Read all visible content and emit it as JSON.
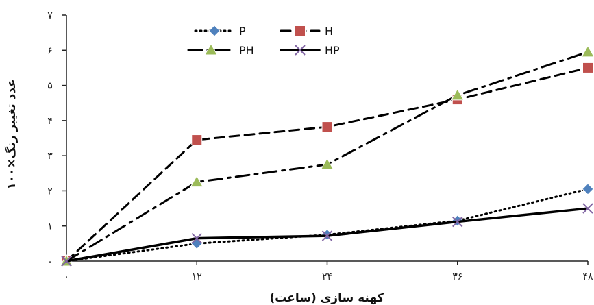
{
  "chart_data": {
    "type": "line",
    "xlabel": "کهنه سازی (ساعت)",
    "ylabel": "عدد تغییر رنگ×۱۰۰",
    "x": [
      0,
      12,
      24,
      36,
      48
    ],
    "x_tick_labels": [
      "۰",
      "۱۲",
      "۲۴",
      "۳۶",
      "۴۸"
    ],
    "y_ticks": [
      0,
      1,
      2,
      3,
      4,
      5,
      6,
      7
    ],
    "y_tick_labels": [
      "۰",
      "۱",
      "۲",
      "۳",
      "۴",
      "۵",
      "۶",
      "۷"
    ],
    "xlim": [
      0,
      48
    ],
    "ylim": [
      0,
      7
    ],
    "grid": false,
    "legend_position": "top-center",
    "series": [
      {
        "name": "P",
        "values": [
          0,
          0.5,
          0.75,
          1.15,
          2.05
        ],
        "color": "#4f81bd",
        "marker": "diamond",
        "dash": "dotted"
      },
      {
        "name": "H",
        "values": [
          0,
          3.45,
          3.82,
          4.6,
          5.5
        ],
        "color": "#c0504d",
        "marker": "square",
        "dash": "dashed"
      },
      {
        "name": "PH",
        "values": [
          0,
          2.25,
          2.75,
          4.72,
          5.95
        ],
        "color": "#9bbb59",
        "marker": "triangle",
        "dash": "dash-dot"
      },
      {
        "name": "HP",
        "values": [
          0,
          0.65,
          0.72,
          1.12,
          1.5
        ],
        "color": "#8064a2",
        "marker": "x",
        "dash": "solid"
      }
    ]
  }
}
